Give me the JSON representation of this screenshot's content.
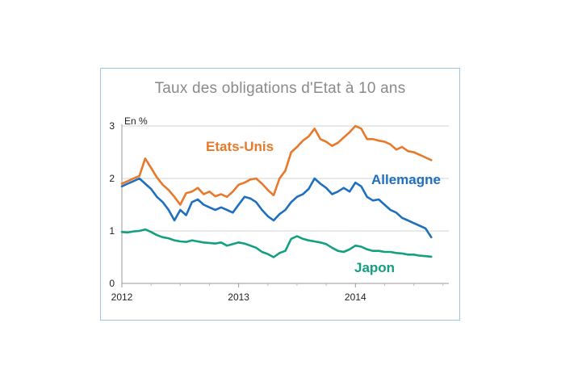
{
  "chart_data": {
    "type": "line",
    "title": "Taux des obligations d'Etat à 10 ans",
    "unit_label": "En %",
    "ylim": [
      0,
      3
    ],
    "yticks": [
      "0",
      "1",
      "2",
      "3"
    ],
    "xlim": [
      2012.0,
      2014.8
    ],
    "xticks": [
      {
        "value": 2012,
        "label": "2012"
      },
      {
        "value": 2013,
        "label": "2013"
      },
      {
        "value": 2014,
        "label": "2014"
      }
    ],
    "grid": "horizontal",
    "series": [
      {
        "name": "Etats-Unis",
        "color": "#e8782a",
        "x": [
          2012.0,
          2012.05,
          2012.1,
          2012.15,
          2012.2,
          2012.25,
          2012.3,
          2012.35,
          2012.4,
          2012.45,
          2012.5,
          2012.55,
          2012.6,
          2012.65,
          2012.7,
          2012.75,
          2012.8,
          2012.85,
          2012.9,
          2012.95,
          2013.0,
          2013.05,
          2013.1,
          2013.15,
          2013.2,
          2013.25,
          2013.3,
          2013.35,
          2013.4,
          2013.45,
          2013.5,
          2013.55,
          2013.6,
          2013.65,
          2013.7,
          2013.75,
          2013.8,
          2013.85,
          2013.9,
          2013.95,
          2014.0,
          2014.05,
          2014.1,
          2014.15,
          2014.2,
          2014.25,
          2014.3,
          2014.35,
          2014.4,
          2014.45,
          2014.5,
          2014.55,
          2014.6,
          2014.65
        ],
        "values": [
          1.9,
          1.95,
          2.0,
          2.05,
          2.38,
          2.2,
          2.02,
          1.88,
          1.78,
          1.65,
          1.5,
          1.72,
          1.75,
          1.82,
          1.7,
          1.75,
          1.66,
          1.7,
          1.65,
          1.75,
          1.88,
          1.92,
          1.98,
          2.0,
          1.9,
          1.78,
          1.68,
          2.0,
          2.15,
          2.5,
          2.6,
          2.72,
          2.8,
          2.95,
          2.75,
          2.7,
          2.62,
          2.68,
          2.78,
          2.88,
          3.0,
          2.95,
          2.75,
          2.75,
          2.72,
          2.7,
          2.65,
          2.55,
          2.6,
          2.52,
          2.5,
          2.45,
          2.4,
          2.35
        ]
      },
      {
        "name": "Allemagne",
        "color": "#1f6fbf",
        "x": [
          2012.0,
          2012.05,
          2012.1,
          2012.15,
          2012.2,
          2012.25,
          2012.3,
          2012.35,
          2012.4,
          2012.45,
          2012.5,
          2012.55,
          2012.6,
          2012.65,
          2012.7,
          2012.75,
          2012.8,
          2012.85,
          2012.9,
          2012.95,
          2013.0,
          2013.05,
          2013.1,
          2013.15,
          2013.2,
          2013.25,
          2013.3,
          2013.35,
          2013.4,
          2013.45,
          2013.5,
          2013.55,
          2013.6,
          2013.65,
          2013.7,
          2013.75,
          2013.8,
          2013.85,
          2013.9,
          2013.95,
          2014.0,
          2014.05,
          2014.1,
          2014.15,
          2014.2,
          2014.25,
          2014.3,
          2014.35,
          2014.4,
          2014.45,
          2014.5,
          2014.55,
          2014.6,
          2014.65
        ],
        "values": [
          1.85,
          1.9,
          1.95,
          2.0,
          1.9,
          1.8,
          1.65,
          1.55,
          1.4,
          1.2,
          1.4,
          1.3,
          1.55,
          1.6,
          1.5,
          1.45,
          1.4,
          1.45,
          1.4,
          1.35,
          1.5,
          1.65,
          1.62,
          1.55,
          1.4,
          1.28,
          1.2,
          1.32,
          1.4,
          1.55,
          1.65,
          1.7,
          1.8,
          2.0,
          1.9,
          1.82,
          1.7,
          1.75,
          1.82,
          1.75,
          1.92,
          1.85,
          1.65,
          1.58,
          1.6,
          1.5,
          1.4,
          1.35,
          1.25,
          1.2,
          1.15,
          1.1,
          1.05,
          0.88
        ]
      },
      {
        "name": "Japon",
        "color": "#13a080",
        "x": [
          2012.0,
          2012.05,
          2012.1,
          2012.15,
          2012.2,
          2012.25,
          2012.3,
          2012.35,
          2012.4,
          2012.45,
          2012.5,
          2012.55,
          2012.6,
          2012.65,
          2012.7,
          2012.75,
          2012.8,
          2012.85,
          2012.9,
          2012.95,
          2013.0,
          2013.05,
          2013.1,
          2013.15,
          2013.2,
          2013.25,
          2013.3,
          2013.35,
          2013.4,
          2013.45,
          2013.5,
          2013.55,
          2013.6,
          2013.65,
          2013.7,
          2013.75,
          2013.8,
          2013.85,
          2013.9,
          2013.95,
          2014.0,
          2014.05,
          2014.1,
          2014.15,
          2014.2,
          2014.25,
          2014.3,
          2014.35,
          2014.4,
          2014.45,
          2014.5,
          2014.55,
          2014.6,
          2014.65
        ],
        "values": [
          0.98,
          0.97,
          0.99,
          1.0,
          1.03,
          0.98,
          0.92,
          0.88,
          0.86,
          0.82,
          0.8,
          0.79,
          0.82,
          0.8,
          0.78,
          0.77,
          0.76,
          0.78,
          0.72,
          0.75,
          0.78,
          0.76,
          0.72,
          0.68,
          0.6,
          0.56,
          0.5,
          0.58,
          0.62,
          0.85,
          0.9,
          0.85,
          0.82,
          0.8,
          0.78,
          0.75,
          0.68,
          0.62,
          0.6,
          0.65,
          0.72,
          0.7,
          0.65,
          0.62,
          0.62,
          0.6,
          0.6,
          0.58,
          0.57,
          0.55,
          0.55,
          0.53,
          0.52,
          0.51
        ]
      }
    ]
  }
}
